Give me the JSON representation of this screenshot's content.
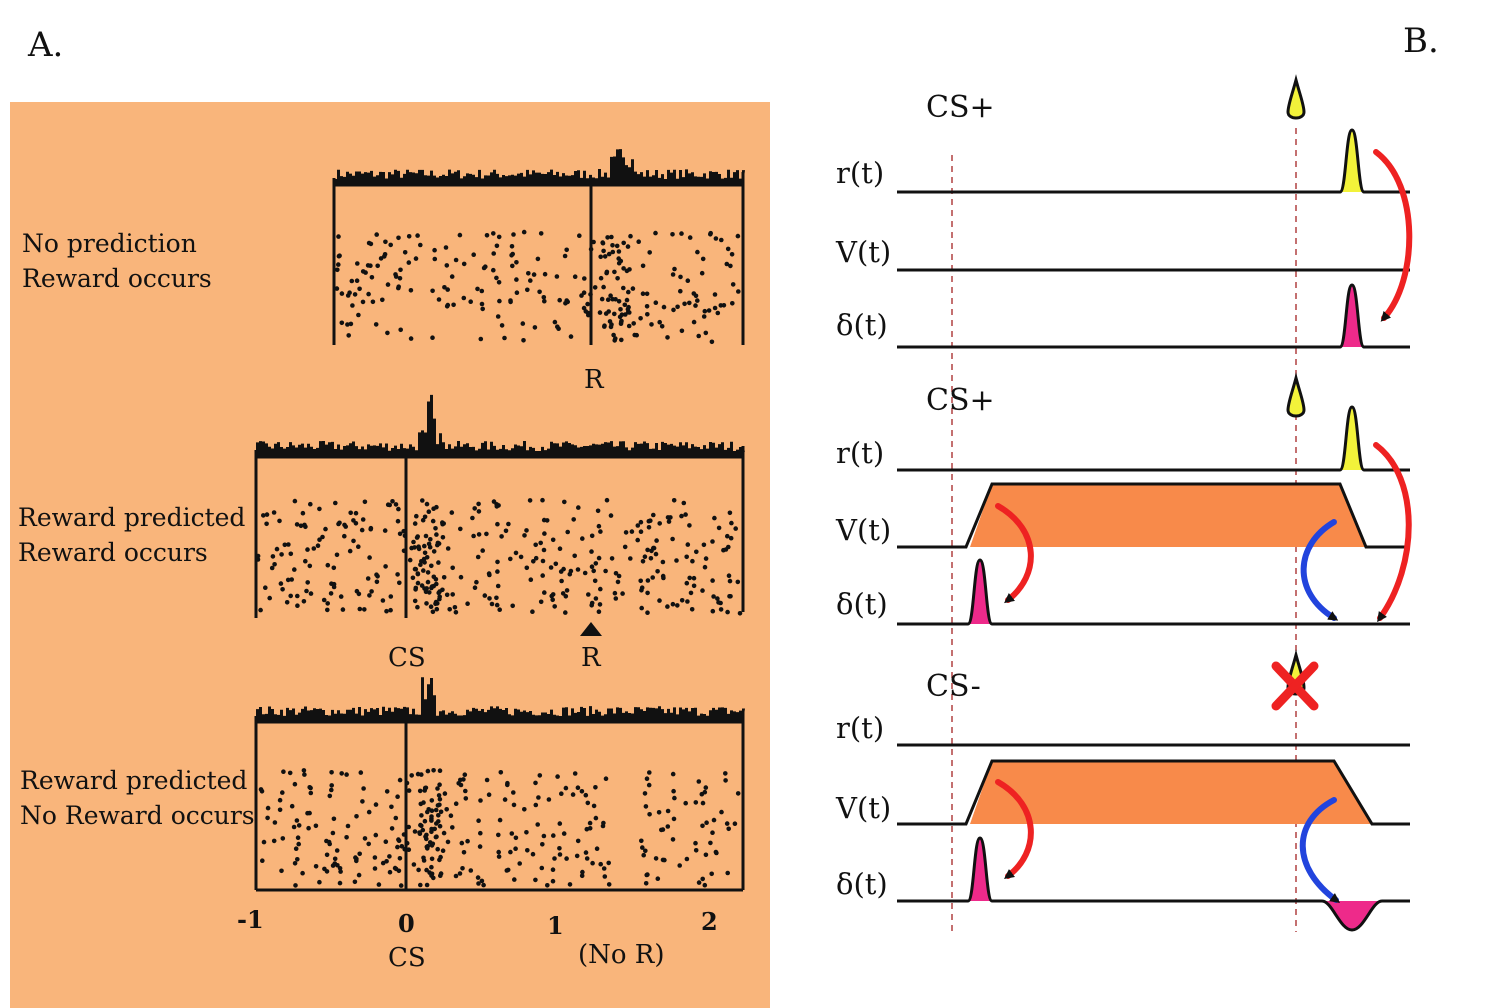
{
  "panel_a": {
    "label": "A.",
    "background_color": "#F9B57B",
    "rows": [
      {
        "line1": "No prediction",
        "line2": "Reward occurs",
        "event_label": "R"
      },
      {
        "line1": "Reward predicted",
        "line2": "Reward occurs",
        "cs_label": "CS",
        "event_label": "R"
      },
      {
        "line1": "Reward predicted",
        "line2": "No Reward occurs"
      }
    ],
    "axis": {
      "ticks": [
        "-1",
        "0",
        "1",
        "2"
      ],
      "cs_label": "CS",
      "no_reward_label": "(No R)"
    }
  },
  "panel_b": {
    "label": "B.",
    "blocks": [
      {
        "cs": "CS+",
        "reward_icon": "yellow-droplet-icon",
        "rows": [
          "r(t)",
          "V(t)",
          "δ(t)"
        ]
      },
      {
        "cs": "CS+",
        "reward_icon": "yellow-droplet-icon",
        "rows": [
          "r(t)",
          "V(t)",
          "δ(t)"
        ]
      },
      {
        "cs": "CS-",
        "reward_icon": "red-cross-icon",
        "rows": [
          "r(t)",
          "V(t)",
          "δ(t)"
        ]
      }
    ],
    "colors": {
      "reward": "#F2F23A",
      "value": "#F88A4A",
      "delta": "#EE2A8A",
      "forward_arrow": "#EE2222",
      "backward_arrow": "#2244DD",
      "cross": "#EE2222"
    }
  }
}
